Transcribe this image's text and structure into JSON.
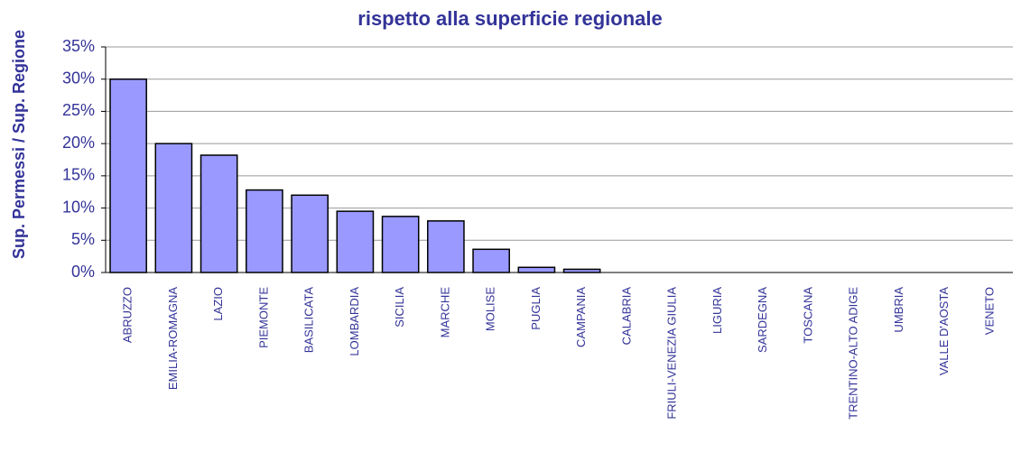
{
  "chart_data": {
    "type": "bar",
    "title": "rispetto alla superficie regionale",
    "y_label": "Sup. Permessi / Sup. Regione",
    "categories": [
      "ABRUZZO",
      "EMILIA-ROMAGNA",
      "LAZIO",
      "PIEMONTE",
      "BASILICATA",
      "LOMBARDIA",
      "SICILIA",
      "MARCHE",
      "MOLISE",
      "PUGLIA",
      "CAMPANIA",
      "CALABRIA",
      "FRIULI-VENEZIA GIULIA",
      "LIGURIA",
      "SARDEGNA",
      "TOSCANA",
      "TRENTINO-ALTO ADIGE",
      "UMBRIA",
      "VALLE D'AOSTA",
      "VENETO"
    ],
    "values": [
      30,
      20,
      18.2,
      12.8,
      12,
      9.5,
      8.7,
      8,
      3.6,
      0.8,
      0.5,
      0,
      0,
      0,
      0,
      0,
      0,
      0,
      0,
      0
    ],
    "color": "#9999ff",
    "ylim": [
      0,
      35
    ],
    "yticks": [
      {
        "value": 0,
        "label": "0%"
      },
      {
        "value": 5,
        "label": "5%"
      },
      {
        "value": 10,
        "label": "10%"
      },
      {
        "value": 15,
        "label": "15%"
      },
      {
        "value": 20,
        "label": "20%"
      },
      {
        "value": 25,
        "label": "25%"
      },
      {
        "value": 30,
        "label": "30%"
      },
      {
        "value": 35,
        "label": "35%"
      }
    ],
    "grid": true
  }
}
